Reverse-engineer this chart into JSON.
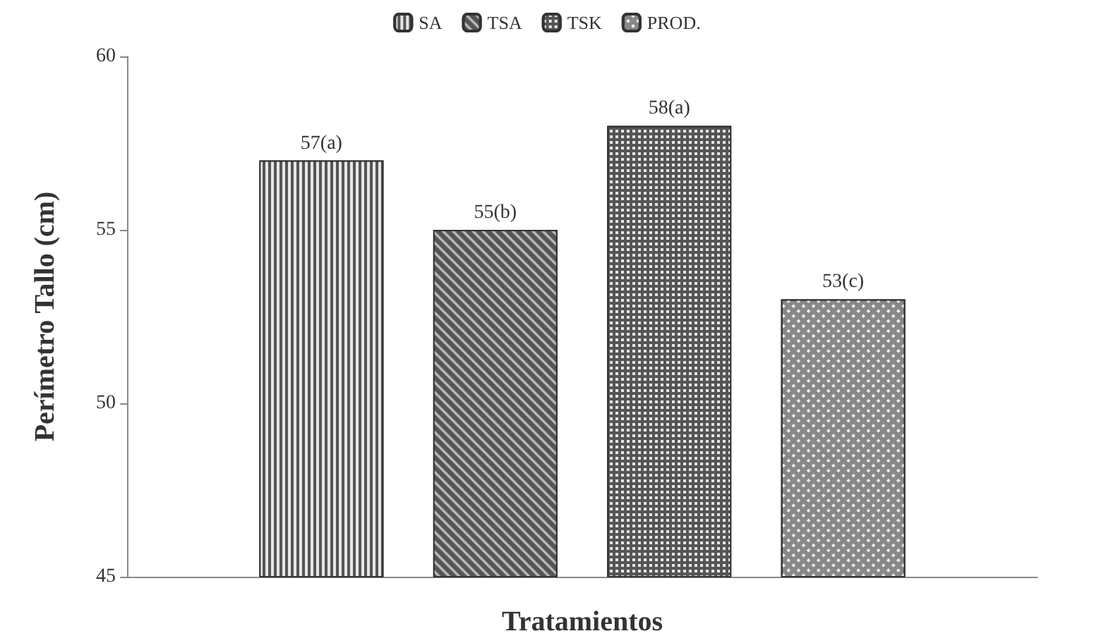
{
  "chart_data": {
    "type": "bar",
    "xlabel": "Tratamientos",
    "ylabel": "Perímetro Tallo (cm)",
    "categories": [
      null
    ],
    "series": [
      {
        "name": "SA",
        "color": "#555555",
        "values": [
          57
        ],
        "value_labels": [
          "57(a)"
        ]
      },
      {
        "name": "TSA",
        "color": "#555555",
        "values": [
          55
        ],
        "value_labels": [
          "55(b)"
        ]
      },
      {
        "name": "TSK",
        "color": "#555555",
        "values": [
          58
        ],
        "value_labels": [
          "58(a)"
        ]
      },
      {
        "name": "PROD.",
        "color": "#888888",
        "values": [
          53
        ],
        "value_labels": [
          "53(c)"
        ]
      }
    ],
    "ylim": [
      45,
      60
    ],
    "yticks": [
      45,
      50,
      55,
      60
    ],
    "grid": false,
    "legend": "top"
  }
}
